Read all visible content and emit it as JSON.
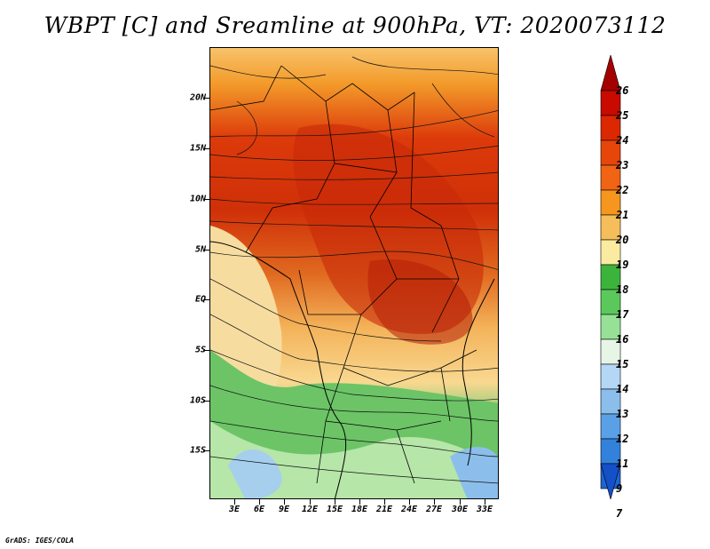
{
  "title": "WBPT [C] and Sreamline at 900hPa, VT: 2020073112",
  "credit": "GrADS: IGES/COLA",
  "map": {
    "lat_labels": [
      "20N",
      "15N",
      "10N",
      "5N",
      "EQ",
      "5S",
      "10S",
      "15S"
    ],
    "lon_labels": [
      "3E",
      "6E",
      "9E",
      "12E",
      "15E",
      "18E",
      "21E",
      "24E",
      "27E",
      "30E",
      "33E"
    ]
  },
  "colorbar": {
    "labels": [
      "26",
      "25",
      "24",
      "23",
      "22",
      "21",
      "20",
      "19",
      "18",
      "17",
      "16",
      "15",
      "14",
      "13",
      "12",
      "11",
      "9",
      "7"
    ],
    "colors": [
      "#a50000",
      "#c80a00",
      "#dc2800",
      "#e6460a",
      "#f06414",
      "#f5961e",
      "#f5be5a",
      "#faeba0",
      "#3cb43c",
      "#5ac85a",
      "#96e196",
      "#e6f5e6",
      "#b4d7f5",
      "#8cbeeb",
      "#5aa0e6",
      "#3282dc",
      "#1e64d2",
      "#1450c8"
    ]
  }
}
